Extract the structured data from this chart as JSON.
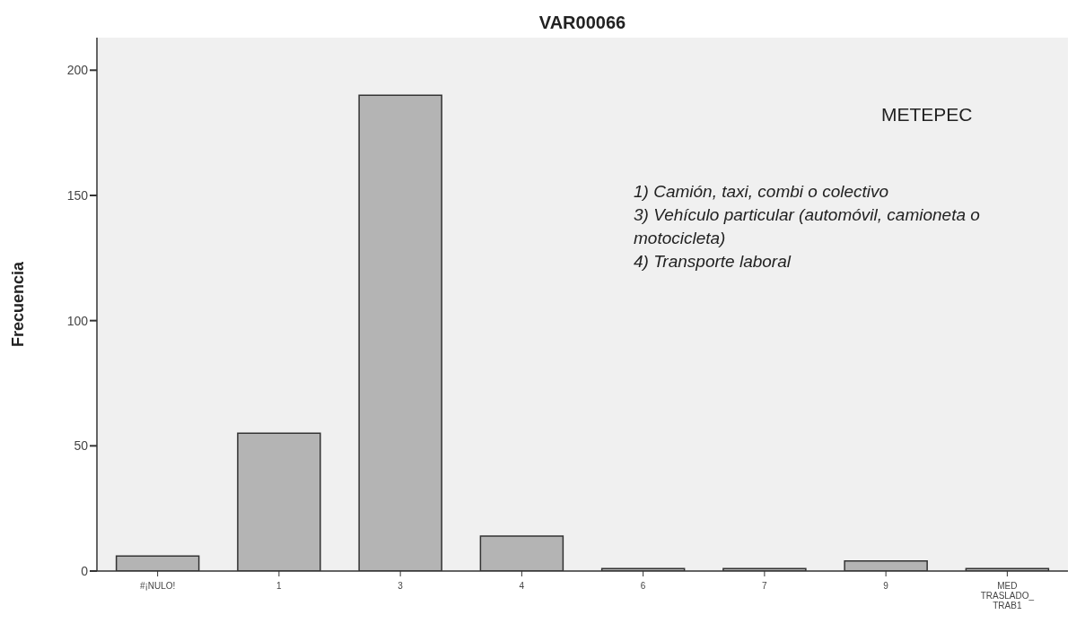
{
  "chart_data": {
    "type": "bar",
    "title": "VAR00066",
    "ylabel": "Frecuencia",
    "categories": [
      "#¡NULO!",
      "1",
      "3",
      "4",
      "6",
      "7",
      "9",
      "MED TRASLADO_TRAB1"
    ],
    "values": [
      6,
      55,
      190,
      14,
      1,
      1,
      4,
      1
    ],
    "color": "#b4b4b4",
    "ylim": [
      0,
      213
    ],
    "yticks": [
      0,
      50,
      100,
      150,
      200
    ],
    "grid": false,
    "legend": false,
    "annotations": [
      "METEPEC",
      "1) Camión, taxi, combi o colectivo",
      "3) Vehículo particular (automóvil, camioneta o motocicleta)",
      "4) Transporte laboral"
    ]
  }
}
